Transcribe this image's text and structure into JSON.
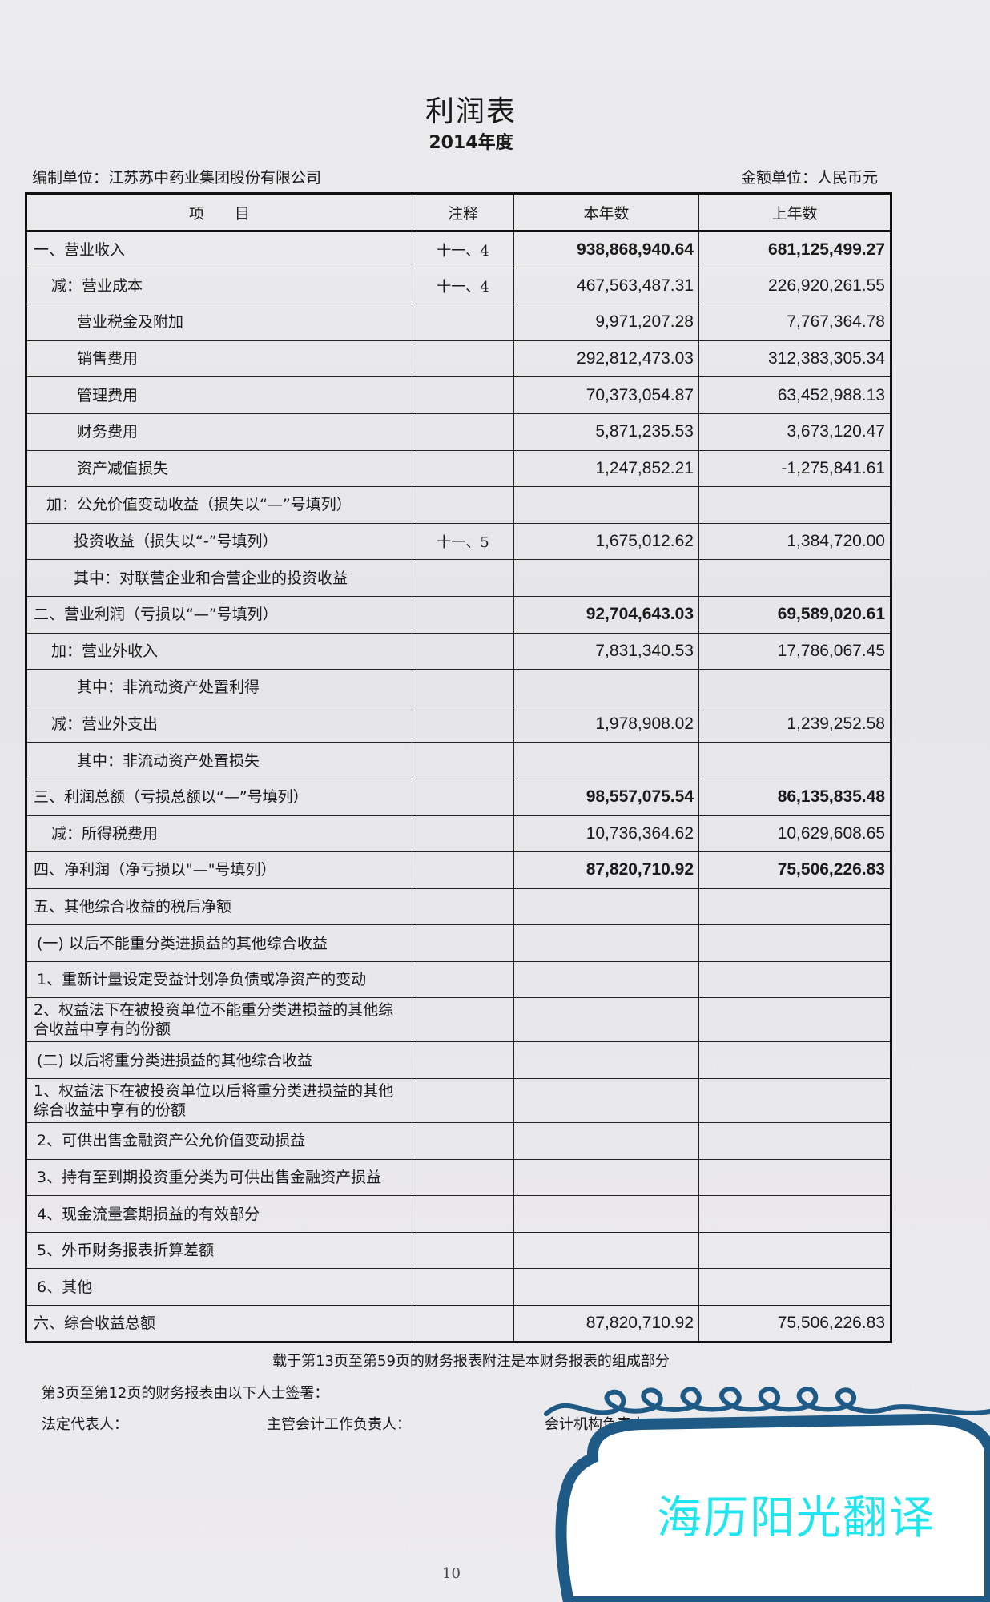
{
  "header": {
    "title": "利润表",
    "period": "2014年度",
    "company": "编制单位：江苏苏中药业集团股份有限公司",
    "currency_unit": "金额单位：人民币元"
  },
  "table": {
    "columns": [
      "项　　目",
      "注释",
      "本年数",
      "上年数"
    ],
    "rows": [
      {
        "item": "一、营业收入",
        "note": "十一、4",
        "current": "938,868,940.64",
        "prior": "681,125,499.27"
      },
      {
        "item": "减：营业成本",
        "note": "十一、4",
        "current": "467,563,487.31",
        "prior": "226,920,261.55"
      },
      {
        "item": "营业税金及附加",
        "note": "",
        "current": "9,971,207.28",
        "prior": "7,767,364.78"
      },
      {
        "item": "销售费用",
        "note": "",
        "current": "292,812,473.03",
        "prior": "312,383,305.34"
      },
      {
        "item": "管理费用",
        "note": "",
        "current": "70,373,054.87",
        "prior": "63,452,988.13"
      },
      {
        "item": "财务费用",
        "note": "",
        "current": "5,871,235.53",
        "prior": "3,673,120.47"
      },
      {
        "item": "资产减值损失",
        "note": "",
        "current": "1,247,852.21",
        "prior": "-1,275,841.61"
      },
      {
        "item": "加：公允价值变动收益（损失以“—”号填列）",
        "note": "",
        "current": "",
        "prior": ""
      },
      {
        "item": "投资收益（损失以“-”号填列）",
        "note": "十一、5",
        "current": "1,675,012.62",
        "prior": "1,384,720.00"
      },
      {
        "item": "其中：对联营企业和合营企业的投资收益",
        "note": "",
        "current": "",
        "prior": ""
      },
      {
        "item": "二、营业利润（亏损以“—”号填列）",
        "note": "",
        "current": "92,704,643.03",
        "prior": "69,589,020.61"
      },
      {
        "item": "加：营业外收入",
        "note": "",
        "current": "7,831,340.53",
        "prior": "17,786,067.45"
      },
      {
        "item": "其中：非流动资产处置利得",
        "note": "",
        "current": "",
        "prior": ""
      },
      {
        "item": "减：营业外支出",
        "note": "",
        "current": "1,978,908.02",
        "prior": "1,239,252.58"
      },
      {
        "item": "其中：非流动资产处置损失",
        "note": "",
        "current": "",
        "prior": ""
      },
      {
        "item": "三、利润总额（亏损总额以“—”号填列）",
        "note": "",
        "current": "98,557,075.54",
        "prior": "86,135,835.48"
      },
      {
        "item": "减：所得税费用",
        "note": "",
        "current": "10,736,364.62",
        "prior": "10,629,608.65"
      },
      {
        "item": "四、净利润（净亏损以\"—\"号填列）",
        "note": "",
        "current": "87,820,710.92",
        "prior": "75,506,226.83"
      },
      {
        "item": "五、其他综合收益的税后净额",
        "note": "",
        "current": "",
        "prior": ""
      },
      {
        "item": "(一) 以后不能重分类进损益的其他综合收益",
        "note": "",
        "current": "",
        "prior": ""
      },
      {
        "item": "1、重新计量设定受益计划净负债或净资产的变动",
        "note": "",
        "current": "",
        "prior": ""
      },
      {
        "item": "2、权益法下在被投资单位不能重分类进损益的其他综合收益中享有的份额",
        "note": "",
        "current": "",
        "prior": ""
      },
      {
        "item": "(二) 以后将重分类进损益的其他综合收益",
        "note": "",
        "current": "",
        "prior": ""
      },
      {
        "item": "1、权益法下在被投资单位以后将重分类进损益的其他综合收益中享有的份额",
        "note": "",
        "current": "",
        "prior": ""
      },
      {
        "item": "2、可供出售金融资产公允价值变动损益",
        "note": "",
        "current": "",
        "prior": ""
      },
      {
        "item": "3、持有至到期投资重分类为可供出售金融资产损益",
        "note": "",
        "current": "",
        "prior": ""
      },
      {
        "item": "4、现金流量套期损益的有效部分",
        "note": "",
        "current": "",
        "prior": ""
      },
      {
        "item": "5、外币财务报表折算差额",
        "note": "",
        "current": "",
        "prior": ""
      },
      {
        "item": "6、其他",
        "note": "",
        "current": "",
        "prior": ""
      },
      {
        "item": "六、综合收益总额",
        "note": "",
        "current": "87,820,710.92",
        "prior": "75,506,226.83"
      }
    ]
  },
  "footer": {
    "note": "载于第13页至第59页的财务报表附注是本财务报表的组成部分",
    "signatures_intro": "第3页至第12页的财务报表由以下人士签署：",
    "legal_rep": "法定代表人：",
    "accounting_head": "主管会计工作负责人：",
    "accounting_dept_head": "会计机构负责人：",
    "page_number": "10"
  },
  "watermark": {
    "text": "海历阳光翻译",
    "text_color": "#1de6ef",
    "border_color": "#1f5a86"
  }
}
